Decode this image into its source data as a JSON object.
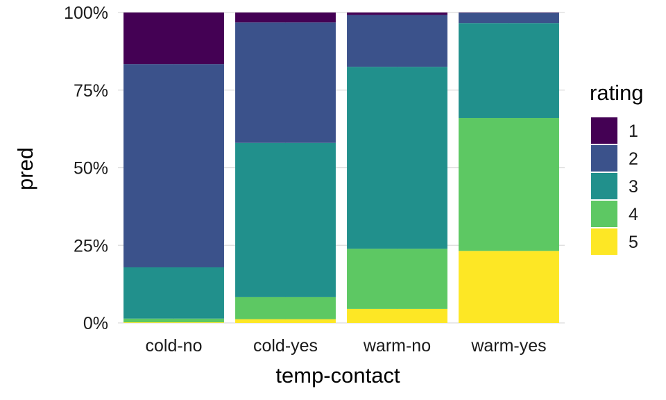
{
  "chart_data": {
    "type": "bar",
    "stacked": true,
    "title": "",
    "xlabel": "temp-contact",
    "ylabel": "pred",
    "ylim": [
      0,
      1
    ],
    "y_ticks": [
      {
        "value": 0,
        "label": "0%"
      },
      {
        "value": 0.25,
        "label": "25%"
      },
      {
        "value": 0.5,
        "label": "50%"
      },
      {
        "value": 0.75,
        "label": "75%"
      },
      {
        "value": 1,
        "label": "100%"
      }
    ],
    "grid": true,
    "legend": {
      "title": "rating",
      "position": "right"
    },
    "categories": [
      "cold-no",
      "cold-yes",
      "warm-no",
      "warm-yes"
    ],
    "series": [
      {
        "name": "1",
        "color": "#440154",
        "values": [
          0.166,
          0.032,
          0.008,
          0.001
        ]
      },
      {
        "name": "2",
        "color": "#3B528B",
        "values": [
          0.655,
          0.388,
          0.167,
          0.033
        ]
      },
      {
        "name": "3",
        "color": "#21908C",
        "values": [
          0.165,
          0.497,
          0.586,
          0.306
        ]
      },
      {
        "name": "4",
        "color": "#5DC863",
        "values": [
          0.012,
          0.071,
          0.194,
          0.428
        ]
      },
      {
        "name": "5",
        "color": "#FDE725",
        "values": [
          0.002,
          0.012,
          0.045,
          0.232
        ]
      }
    ]
  }
}
